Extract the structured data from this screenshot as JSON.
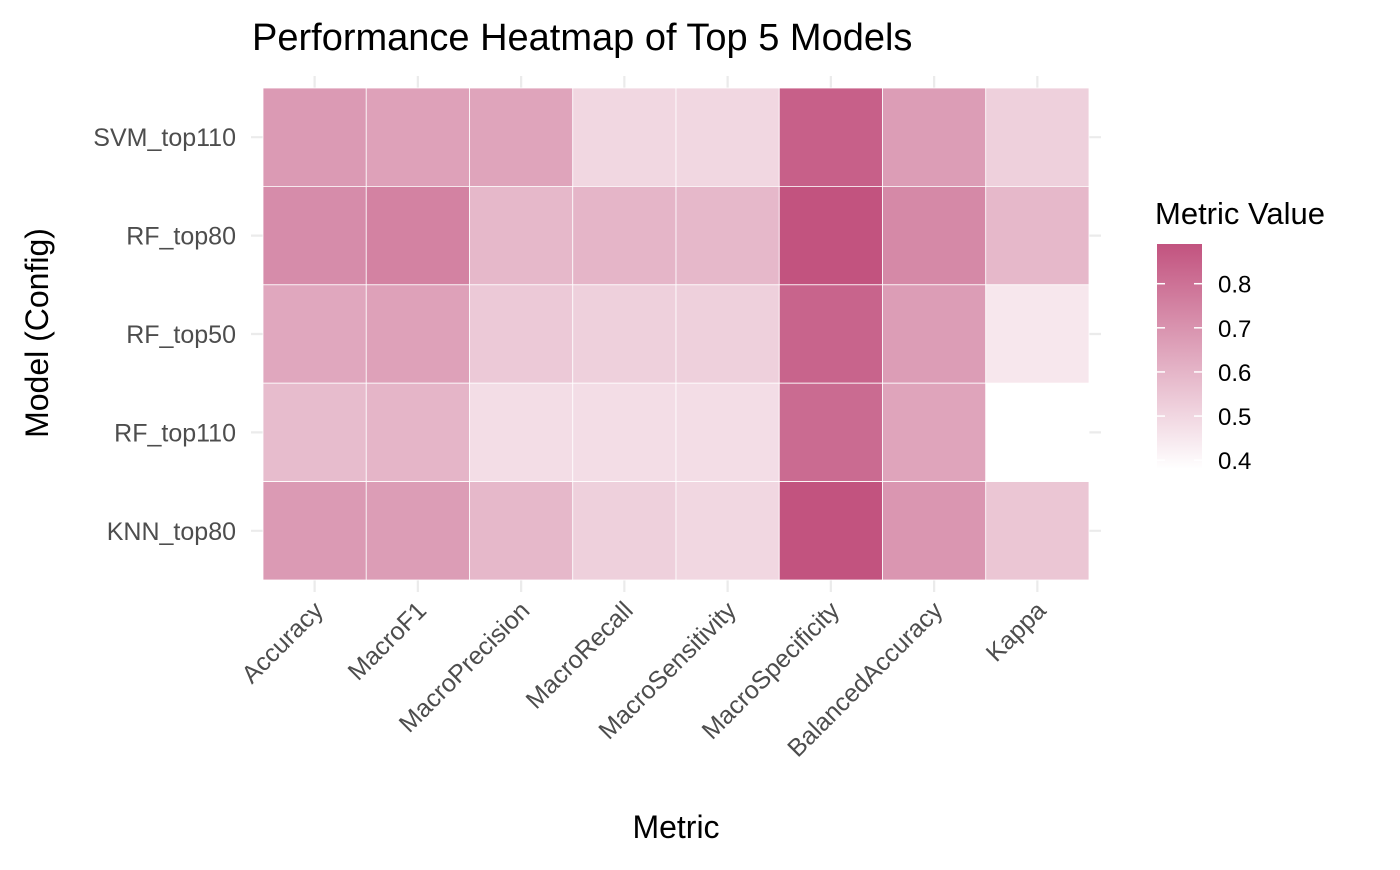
{
  "chart_data": {
    "type": "heatmap",
    "title": "Performance Heatmap of Top 5 Models",
    "xlabel": "Metric",
    "ylabel": "Model (Config)",
    "x_categories": [
      "Accuracy",
      "MacroF1",
      "MacroPrecision",
      "MacroRecall",
      "MacroSensitivity",
      "MacroSpecificity",
      "BalancedAccuracy",
      "Kappa"
    ],
    "y_categories": [
      "SVM_top110",
      "RF_top80",
      "RF_top50",
      "RF_top110",
      "KNN_top80"
    ],
    "values": [
      [
        0.68,
        0.66,
        0.65,
        0.5,
        0.5,
        0.85,
        0.67,
        0.52
      ],
      [
        0.72,
        0.75,
        0.59,
        0.6,
        0.59,
        0.89,
        0.73,
        0.59
      ],
      [
        0.64,
        0.66,
        0.54,
        0.52,
        0.52,
        0.84,
        0.67,
        0.45
      ],
      [
        0.58,
        0.6,
        0.48,
        0.48,
        0.48,
        0.82,
        0.65,
        0.38
      ],
      [
        0.68,
        0.67,
        0.59,
        0.52,
        0.5,
        0.89,
        0.69,
        0.55
      ]
    ],
    "legend": {
      "title": "Metric Value",
      "ticks": [
        0.8,
        0.7,
        0.6,
        0.5,
        0.4
      ],
      "tick_labels": [
        "0.8",
        "0.7",
        "0.6",
        "0.5",
        "0.4"
      ],
      "placement": "right",
      "range": [
        0.38,
        0.89
      ]
    },
    "colors": {
      "low": "#ffffff",
      "high": "#c2537f"
    },
    "grid": true
  }
}
